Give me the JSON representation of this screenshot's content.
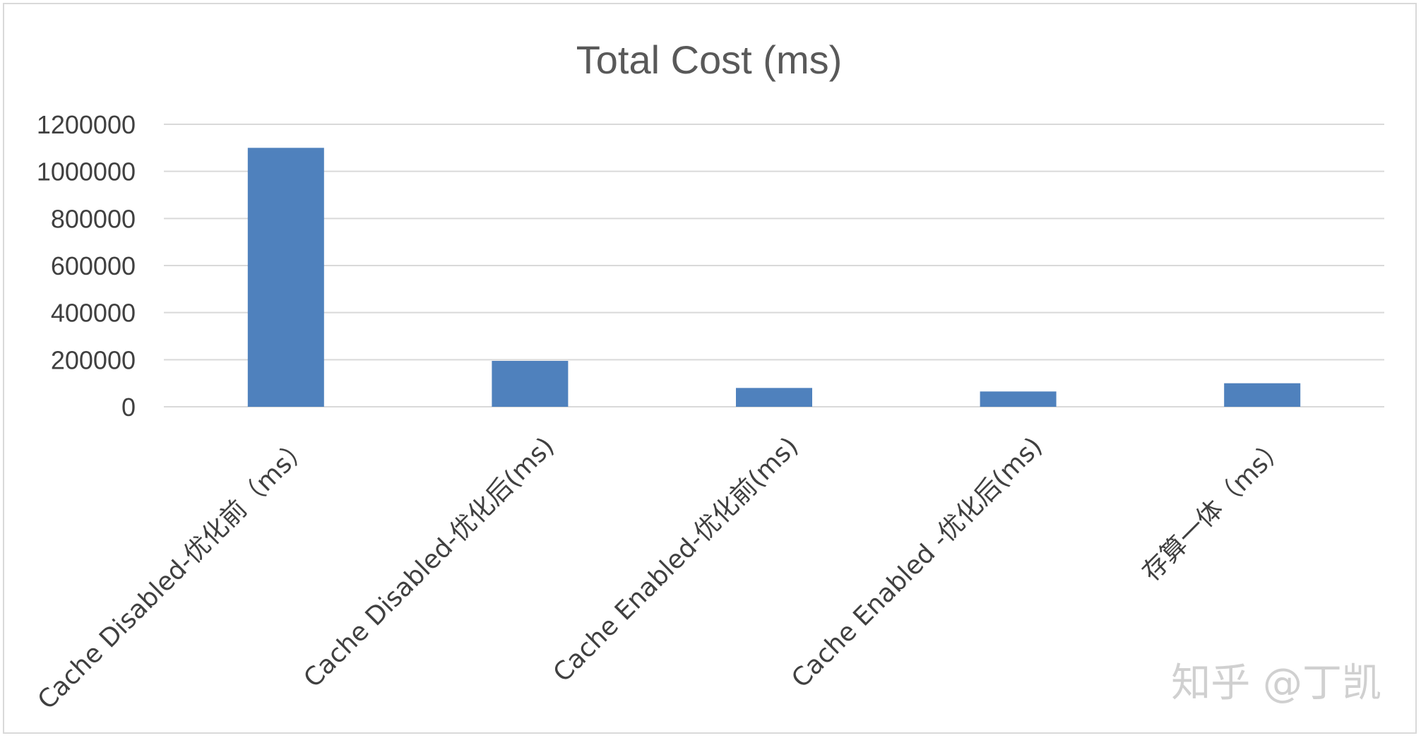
{
  "chart_data": {
    "type": "bar",
    "title": "Total Cost (ms)",
    "xlabel": "",
    "ylabel": "",
    "categories": [
      "Cache Disabled-优化前（ms）",
      "Cache Disabled-优化后(ms)",
      "Cache Enabled-优化前(ms)",
      "Cache Enabled -优化后(ms)",
      "存算一体（ms）"
    ],
    "values": [
      1100000,
      195000,
      80000,
      65000,
      100000
    ],
    "ylim": [
      0,
      1200000
    ],
    "yticks": [
      "0",
      "200000",
      "400000",
      "600000",
      "800000",
      "1000000",
      "1200000"
    ],
    "grid": true,
    "legend": "none",
    "bar_color": "#4f81bd"
  },
  "watermark": "知乎 @丁凯"
}
